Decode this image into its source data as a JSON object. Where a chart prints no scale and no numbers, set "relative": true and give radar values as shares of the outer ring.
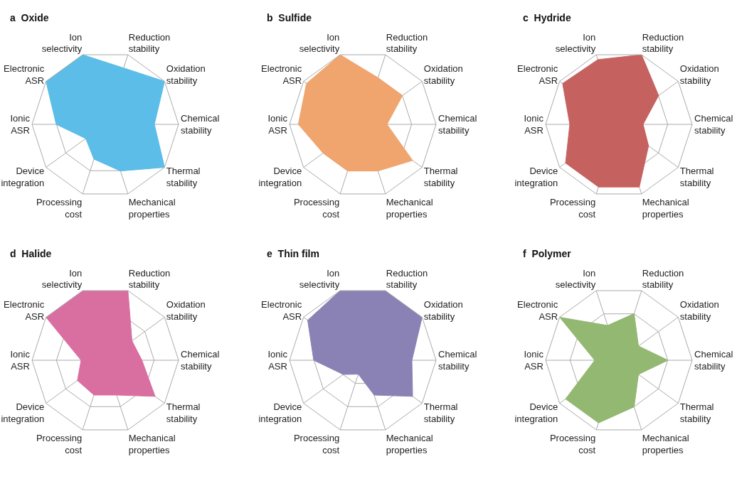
{
  "chart_data": [
    {
      "type": "radar",
      "title": "a Oxide",
      "relative": true,
      "grid": true,
      "categories": [
        "Reduction stability",
        "Oxidation stability",
        "Chemical stability",
        "Thermal stability",
        "Mechanical properties",
        "Processing cost",
        "Device integration",
        "Ionic ASR",
        "Electronic ASR",
        "Ion selectivity"
      ],
      "series": [
        {
          "color": "#5bbde8",
          "values": [
            0.81,
            1,
            0.67,
            1,
            0.67,
            0.5,
            0.33,
            0.67,
            1,
            1
          ]
        }
      ]
    },
    {
      "type": "radar",
      "title": "b Sulfide",
      "relative": true,
      "grid": true,
      "categories": [
        "Reduction stability",
        "Oxidation stability",
        "Chemical stability",
        "Thermal stability",
        "Mechanical properties",
        "Processing cost",
        "Device integration",
        "Ionic ASR",
        "Electronic ASR",
        "Ion selectivity"
      ],
      "series": [
        {
          "color": "#f0a56e",
          "values": [
            0.67,
            0.67,
            0.33,
            0.84,
            0.67,
            0.67,
            0.67,
            0.88,
            0.95,
            1
          ]
        }
      ]
    },
    {
      "type": "radar",
      "title": "c Hydride",
      "relative": true,
      "grid": true,
      "categories": [
        "Reduction stability",
        "Oxidation stability",
        "Chemical stability",
        "Thermal stability",
        "Mechanical properties",
        "Processing cost",
        "Device integration",
        "Ionic ASR",
        "Electronic ASR",
        "Ion selectivity"
      ],
      "series": [
        {
          "color": "#c5625f",
          "values": [
            1,
            0.67,
            0.33,
            0.5,
            0.9,
            0.9,
            0.9,
            0.67,
            0.95,
            0.93
          ]
        }
      ]
    },
    {
      "type": "radar",
      "title": "d Halide",
      "relative": true,
      "grid": true,
      "categories": [
        "Reduction stability",
        "Oxidation stability",
        "Chemical stability",
        "Thermal stability",
        "Mechanical properties",
        "Processing cost",
        "Device integration",
        "Ionic ASR",
        "Electronic ASR",
        "Ion selectivity"
      ],
      "series": [
        {
          "color": "#d96ea0",
          "values": [
            1,
            0.45,
            0.5,
            0.84,
            0.5,
            0.5,
            0.47,
            0.33,
            1,
            1
          ]
        }
      ]
    },
    {
      "type": "radar",
      "title": "e Thin film",
      "relative": true,
      "grid": true,
      "categories": [
        "Reduction stability",
        "Oxidation stability",
        "Chemical stability",
        "Thermal stability",
        "Mechanical properties",
        "Processing cost",
        "Device integration",
        "Ionic ASR",
        "Electronic ASR",
        "Ion selectivity"
      ],
      "series": [
        {
          "color": "#8a82b4",
          "values": [
            1,
            1,
            0.67,
            0.84,
            0.5,
            0.2,
            0.33,
            0.67,
            0.93,
            1
          ]
        }
      ]
    },
    {
      "type": "radar",
      "title": "f Polymer",
      "relative": true,
      "grid": true,
      "categories": [
        "Reduction stability",
        "Oxidation stability",
        "Chemical stability",
        "Thermal stability",
        "Mechanical properties",
        "Processing cost",
        "Device integration",
        "Ionic ASR",
        "Electronic ASR",
        "Ion selectivity"
      ],
      "series": [
        {
          "color": "#92b872",
          "values": [
            0.67,
            0.33,
            0.67,
            0.33,
            0.67,
            0.9,
            0.9,
            0.33,
            1,
            0.5
          ]
        }
      ]
    }
  ]
}
